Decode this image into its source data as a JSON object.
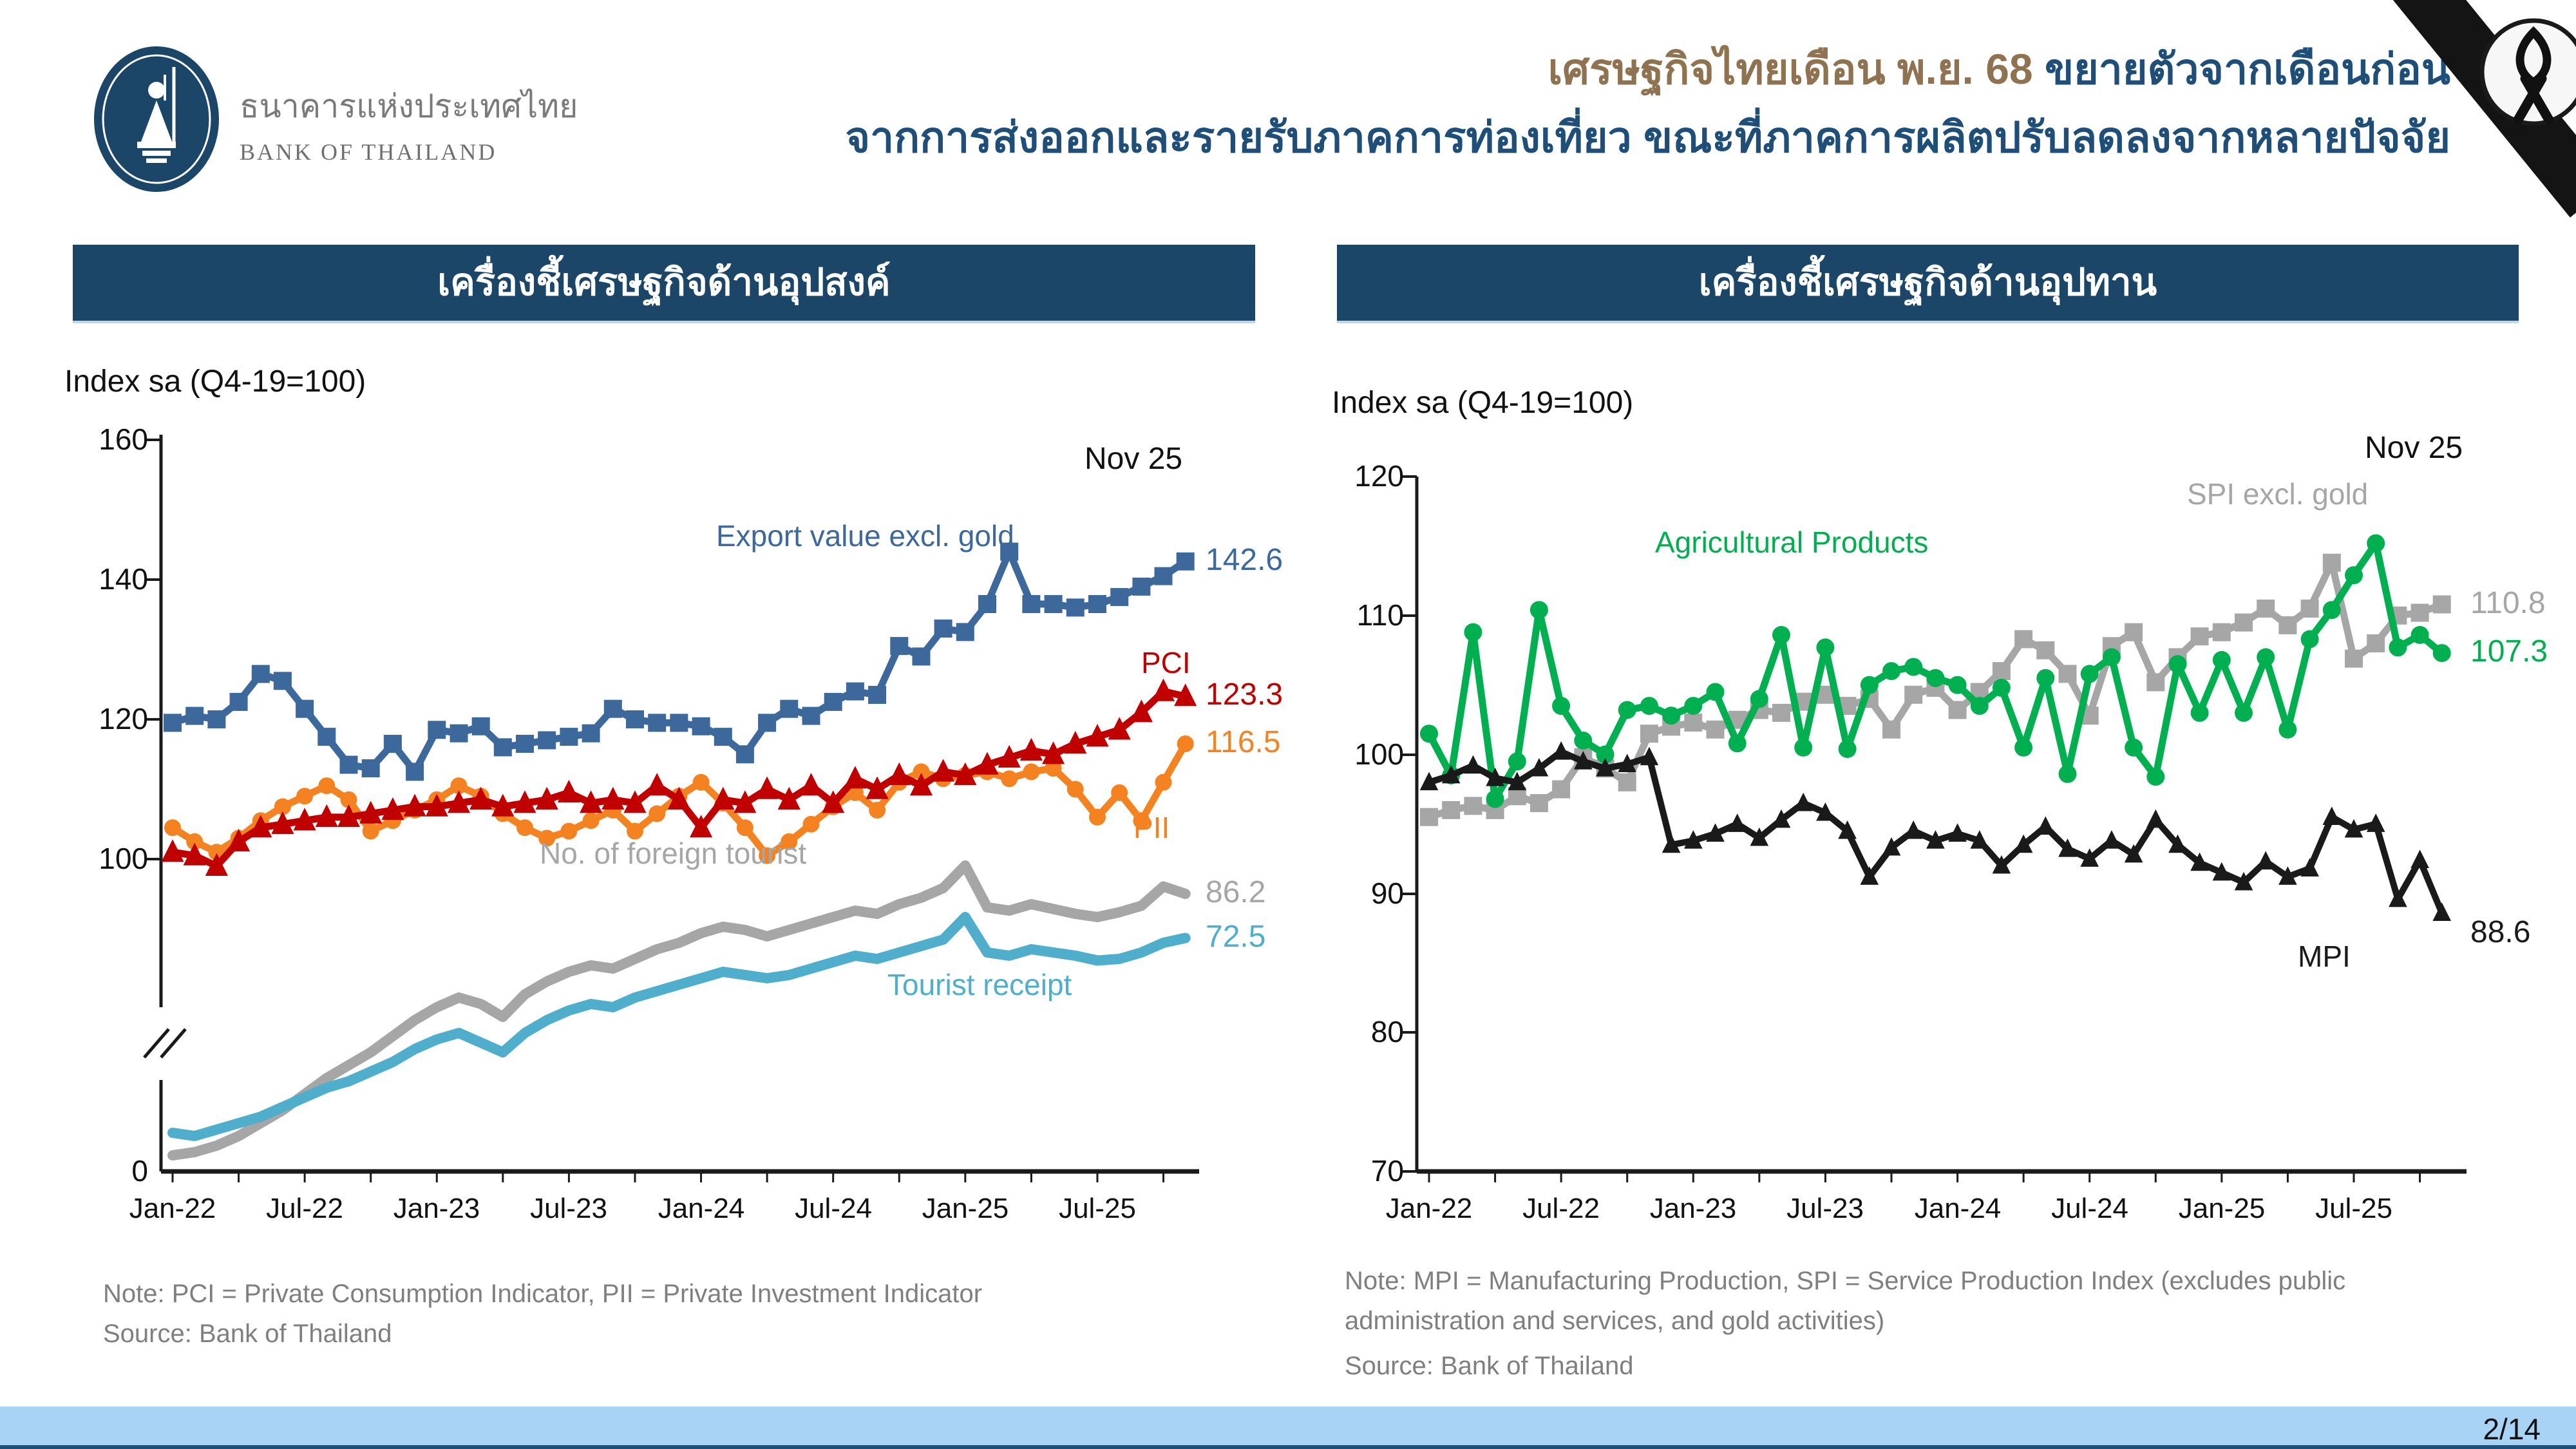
{
  "header": {
    "logo": {
      "thai_name": "ธนาคารแห่งประเทศไทย",
      "english_name": "BANK OF THAILAND"
    },
    "title_line1_highlight": "เศรษฐกิจไทยเดือน พ.ย. 68",
    "title_line1_rest": " ขยายตัวจากเดือนก่อน",
    "title_line2": "จากการส่งออกและรายรับภาคการท่องเที่ยว ขณะที่ภาคการผลิตปรับลดลงจากหลายปัจจัย"
  },
  "section_bars": {
    "left": "เครื่องชี้เศรษฐกิจด้านอุปสงค์",
    "right": "เครื่องชี้เศรษฐกิจด้านอุปทาน"
  },
  "footer": {
    "page": "2/14"
  },
  "colors": {
    "navy_bar": "#1b4668",
    "title_brown": "#8f7250",
    "title_blue": "#1f4e79",
    "footer_light_blue": "#a9d3f5",
    "footer_navy": "#1f4e79",
    "export_blue": "#3d689b",
    "pci_red": "#c00000",
    "pii_orange": "#f58220",
    "tourist_gray": "#a6a6a6",
    "tourist_receipt_cyan": "#4faecb",
    "agri_green": "#00b050",
    "spi_gray": "#a6a6a6",
    "mpi_black": "#1a1a1a"
  },
  "chart_data": [
    {
      "type": "line",
      "title": "เครื่องชี้เศรษฐกิจด้านอุปสงค์",
      "axis_title": "Index sa (Q4-19=100)",
      "date_label": "Nov 25",
      "grid": false,
      "axis_break": true,
      "ylim": [
        0,
        160
      ],
      "y_tick_labels": [
        "160",
        "140",
        "120",
        "100",
        "0"
      ],
      "x_ticks_shown": [
        "Jan-22",
        "Jul-22",
        "Jan-23",
        "Jul-23",
        "Jan-24",
        "Jul-24",
        "Jan-25",
        "Jul-25"
      ],
      "x": [
        "Jan-22",
        "Feb-22",
        "Mar-22",
        "Apr-22",
        "May-22",
        "Jun-22",
        "Jul-22",
        "Aug-22",
        "Sep-22",
        "Oct-22",
        "Nov-22",
        "Dec-22",
        "Jan-23",
        "Feb-23",
        "Mar-23",
        "Apr-23",
        "May-23",
        "Jun-23",
        "Jul-23",
        "Aug-23",
        "Sep-23",
        "Oct-23",
        "Nov-23",
        "Dec-23",
        "Jan-24",
        "Feb-24",
        "Mar-24",
        "Apr-24",
        "May-24",
        "Jun-24",
        "Jul-24",
        "Aug-24",
        "Sep-24",
        "Oct-24",
        "Nov-24",
        "Dec-24",
        "Jan-25",
        "Feb-25",
        "Mar-25",
        "Apr-25",
        "May-25",
        "Jun-25",
        "Jul-25",
        "Aug-25",
        "Sep-25",
        "Oct-25",
        "Nov-25"
      ],
      "series": [
        {
          "name": "Export value excl. gold",
          "color": "#3d689b",
          "marker": "square",
          "last_label": "142.6",
          "values": [
            119.5,
            120.5,
            120.0,
            122.5,
            126.5,
            125.5,
            121.5,
            117.5,
            113.5,
            113.0,
            116.5,
            112.5,
            118.5,
            118.0,
            119.0,
            116.0,
            116.5,
            117.0,
            117.5,
            118.0,
            121.5,
            120.0,
            119.5,
            119.5,
            119.0,
            117.5,
            115.0,
            119.5,
            121.5,
            120.5,
            122.5,
            124.0,
            123.5,
            130.5,
            129.0,
            133.0,
            132.5,
            136.5,
            144.0,
            136.5,
            136.5,
            136.0,
            136.5,
            137.5,
            139.0,
            140.5,
            142.6
          ]
        },
        {
          "name": "PCI",
          "color": "#c00000",
          "marker": "triangle",
          "last_label": "123.3",
          "values": [
            101.0,
            100.5,
            99.0,
            102.5,
            104.5,
            105.0,
            105.5,
            106.0,
            106.0,
            106.5,
            107.0,
            107.5,
            107.5,
            108.0,
            108.5,
            107.5,
            108.0,
            108.5,
            109.5,
            108.0,
            108.5,
            108.0,
            110.5,
            108.5,
            104.5,
            108.5,
            108.0,
            110.0,
            108.5,
            110.5,
            108.0,
            111.5,
            110.0,
            112.0,
            110.5,
            112.5,
            112.0,
            113.5,
            114.5,
            115.5,
            115.0,
            116.5,
            117.5,
            118.5,
            121.0,
            124.0,
            123.3
          ]
        },
        {
          "name": "PII",
          "color": "#f58220",
          "marker": "circle",
          "last_label": "116.5",
          "values": [
            104.5,
            102.5,
            101.0,
            103.0,
            105.5,
            107.5,
            109.0,
            110.5,
            108.5,
            104.0,
            105.5,
            107.0,
            108.5,
            110.5,
            109.0,
            106.5,
            104.5,
            103.0,
            104.0,
            105.5,
            107.0,
            104.0,
            106.5,
            109.0,
            111.0,
            108.0,
            104.5,
            100.5,
            102.5,
            105.0,
            107.5,
            109.5,
            107.0,
            111.0,
            112.5,
            111.5,
            112.0,
            112.5,
            111.5,
            112.5,
            113.0,
            110.0,
            106.0,
            109.5,
            105.5,
            111.0,
            116.5
          ]
        },
        {
          "name": "No. of foreign tourist",
          "color": "#a6a6a6",
          "marker": "none",
          "last_label": "86.2",
          "values": [
            5,
            6,
            8,
            11,
            15,
            19,
            24,
            29,
            33,
            37,
            42,
            47,
            51,
            54,
            52,
            48,
            55,
            59,
            62,
            64,
            63,
            66,
            69,
            71,
            74,
            76,
            75,
            73,
            75,
            77,
            79,
            81,
            80,
            83,
            85,
            88,
            95,
            82,
            81,
            83,
            81.5,
            80,
            79,
            80.5,
            82.5,
            88.5,
            86.2
          ]
        },
        {
          "name": "Tourist receipt",
          "color": "#4faecb",
          "marker": "none",
          "last_label": "72.5",
          "values": [
            12,
            11,
            13,
            15,
            17,
            20,
            23,
            26,
            28,
            31,
            34,
            38,
            41,
            43,
            40,
            37,
            43,
            47,
            50,
            52,
            51,
            54,
            56,
            58,
            60,
            62,
            61,
            60,
            61,
            63,
            65,
            67,
            66,
            68,
            70,
            72,
            79,
            68,
            67,
            69,
            68,
            67,
            65.5,
            66,
            68,
            71,
            72.5
          ]
        }
      ],
      "note": "Note: PCI = Private Consumption Indicator, PII = Private Investment Indicator",
      "source": "Source: Bank of Thailand"
    },
    {
      "type": "line",
      "title": "เครื่องชี้เศรษฐกิจด้านอุปทาน",
      "axis_title": "Index sa (Q4-19=100)",
      "date_label": "Nov 25",
      "grid": false,
      "axis_break": false,
      "ylim": [
        70,
        120
      ],
      "y_tick_labels": [
        "120",
        "110",
        "100",
        "90",
        "80",
        "70"
      ],
      "x_ticks_shown": [
        "Jan-22",
        "Jul-22",
        "Jan-23",
        "Jul-23",
        "Jan-24",
        "Jul-24",
        "Jan-25",
        "Jul-25"
      ],
      "x": [
        "Jan-22",
        "Feb-22",
        "Mar-22",
        "Apr-22",
        "May-22",
        "Jun-22",
        "Jul-22",
        "Aug-22",
        "Sep-22",
        "Oct-22",
        "Nov-22",
        "Dec-22",
        "Jan-23",
        "Feb-23",
        "Mar-23",
        "Apr-23",
        "May-23",
        "Jun-23",
        "Jul-23",
        "Aug-23",
        "Sep-23",
        "Oct-23",
        "Nov-23",
        "Dec-23",
        "Jan-24",
        "Feb-24",
        "Mar-24",
        "Apr-24",
        "May-24",
        "Jun-24",
        "Jul-24",
        "Aug-24",
        "Sep-24",
        "Oct-24",
        "Nov-24",
        "Dec-24",
        "Jan-25",
        "Feb-25",
        "Mar-25",
        "Apr-25",
        "May-25",
        "Jun-25",
        "Jul-25",
        "Aug-25",
        "Sep-25",
        "Oct-25",
        "Nov-25"
      ],
      "series": [
        {
          "name": "Agricultural Products",
          "color": "#00b050",
          "marker": "circle",
          "last_label": "107.3",
          "values": [
            101.5,
            98.5,
            108.8,
            96.8,
            99.5,
            110.4,
            103.5,
            101.0,
            100.0,
            103.2,
            103.5,
            102.8,
            103.5,
            104.5,
            100.8,
            104.0,
            108.6,
            100.5,
            107.7,
            100.4,
            105.0,
            106.0,
            106.3,
            105.5,
            105.0,
            103.5,
            104.8,
            100.5,
            105.5,
            98.6,
            105.8,
            107.0,
            100.5,
            98.4,
            106.5,
            103.0,
            106.8,
            103.0,
            107.0,
            101.8,
            108.3,
            110.4,
            112.9,
            115.2,
            107.7,
            108.6,
            107.3
          ]
        },
        {
          "name": "SPI excl. gold",
          "color": "#a6a6a6",
          "marker": "square",
          "last_label": "110.8",
          "values": [
            95.5,
            96.0,
            96.3,
            96.0,
            97.0,
            96.5,
            97.5,
            99.8,
            99.0,
            98.0,
            101.5,
            102.0,
            102.3,
            101.8,
            102.5,
            103.2,
            103.0,
            103.8,
            104.3,
            103.5,
            104.0,
            101.8,
            104.3,
            104.8,
            103.2,
            104.5,
            106.0,
            108.3,
            107.5,
            105.8,
            102.8,
            107.8,
            108.8,
            105.2,
            107.0,
            108.5,
            108.8,
            109.5,
            110.5,
            109.3,
            110.5,
            113.8,
            106.9,
            108.0,
            110.0,
            110.2,
            110.8
          ]
        },
        {
          "name": "MPI",
          "color": "#1a1a1a",
          "marker": "triangle",
          "last_label": "88.6",
          "values": [
            98.0,
            98.5,
            99.2,
            98.3,
            98.0,
            99.0,
            100.2,
            99.5,
            99.0,
            99.3,
            99.8,
            93.5,
            93.8,
            94.3,
            95.0,
            94.0,
            95.3,
            96.5,
            95.8,
            94.5,
            91.2,
            93.3,
            94.5,
            93.8,
            94.3,
            93.8,
            92.0,
            93.5,
            94.8,
            93.2,
            92.5,
            93.8,
            92.8,
            95.3,
            93.5,
            92.2,
            91.5,
            90.8,
            92.3,
            91.2,
            91.8,
            95.5,
            94.6,
            95.0,
            89.6,
            92.4,
            88.6
          ]
        }
      ],
      "note": "Note: MPI = Manufacturing Production, SPI = Service Production Index (excludes public administration and services, and gold activities)",
      "source": "Source: Bank of Thailand"
    }
  ]
}
